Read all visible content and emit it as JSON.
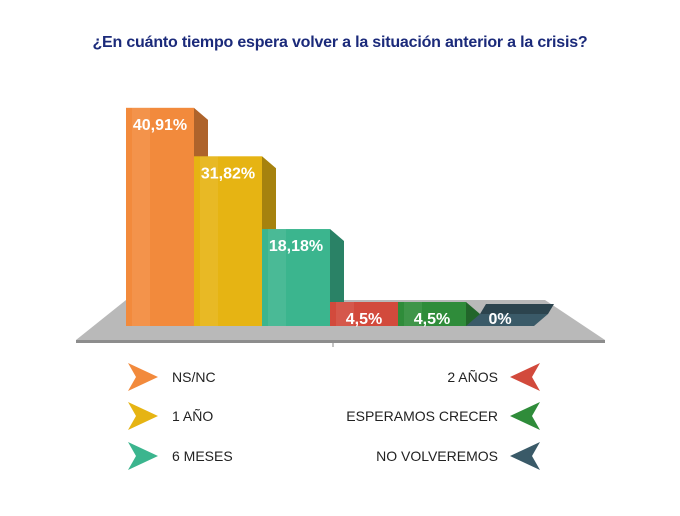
{
  "chart_data": {
    "type": "bar",
    "title": "¿En cuánto tiempo espera volver a la situación anterior a la crisis?",
    "categories": [
      "NS/NC",
      "1 AÑO",
      "6 MESES",
      "2 AÑOS",
      "ESPERAMOS CRECER",
      "NO VOLVEREMOS"
    ],
    "values": [
      40.91,
      31.82,
      18.18,
      4.5,
      4.5,
      0
    ],
    "labels": [
      "40,91%",
      "31,82%",
      "18,18%",
      "4,5%",
      "4,5%",
      "0%"
    ],
    "colors": [
      "#f28a3c",
      "#e6b413",
      "#3bb58e",
      "#d24a3c",
      "#2f8c3a",
      "#3a5a68"
    ],
    "ylim": [
      0,
      45
    ],
    "grid": false,
    "legend_position": "bottom"
  }
}
